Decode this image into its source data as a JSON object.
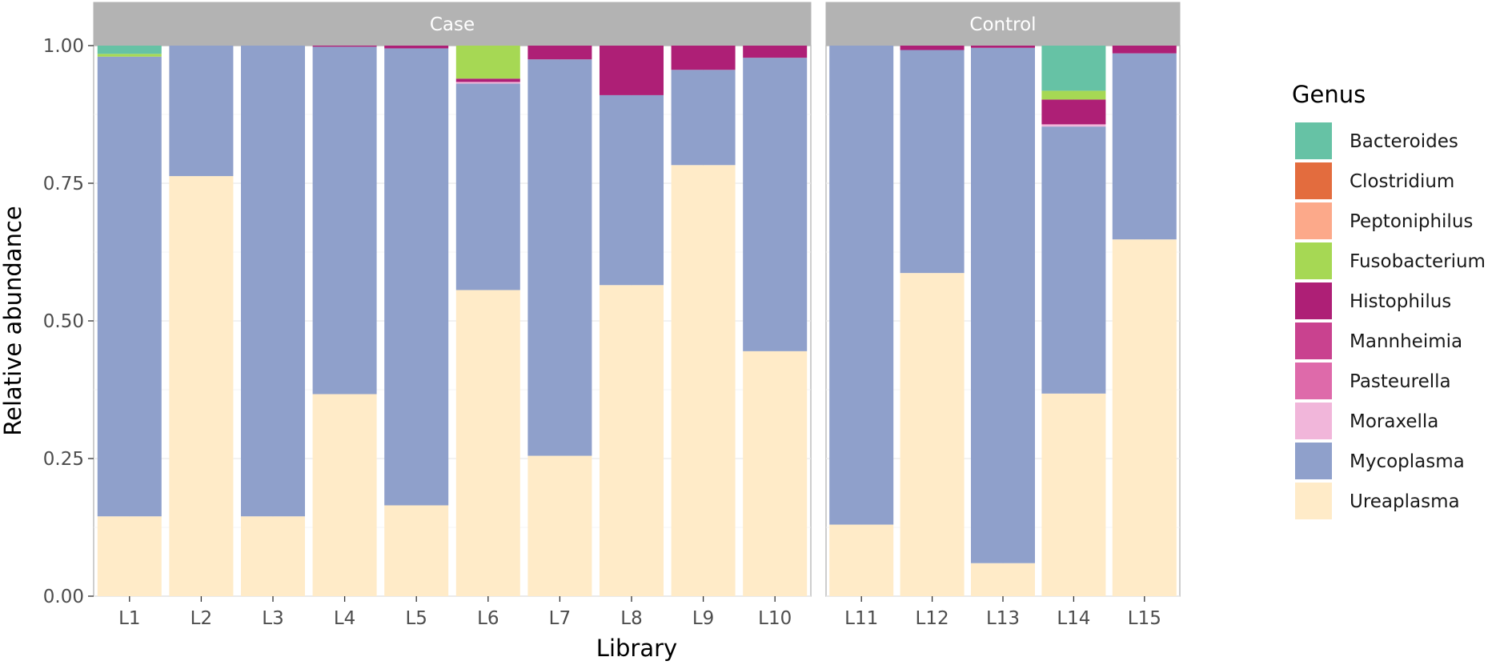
{
  "chart_data": {
    "type": "bar",
    "stacked": true,
    "xlabel": "Library",
    "ylabel": "Relative abundance",
    "ylim": [
      0,
      1
    ],
    "yticks": [
      "0.00",
      "0.25",
      "0.50",
      "0.75",
      "1.00"
    ],
    "grid": true,
    "legend": {
      "title": "Genus",
      "position": "right"
    },
    "series": [
      {
        "name": "Ureaplasma",
        "color": "#FFEBC8"
      },
      {
        "name": "Mycoplasma",
        "color": "#8FA0CB"
      },
      {
        "name": "Moraxella",
        "color": "#F1B6DA"
      },
      {
        "name": "Pasteurella",
        "color": "#DE6AAA"
      },
      {
        "name": "Mannheimia",
        "color": "#C9428F"
      },
      {
        "name": "Histophilus",
        "color": "#AE1F76"
      },
      {
        "name": "Fusobacterium",
        "color": "#A6D854"
      },
      {
        "name": "Peptoniphilus",
        "color": "#FCA98A"
      },
      {
        "name": "Clostridium",
        "color": "#E36C3E"
      },
      {
        "name": "Bacteroides",
        "color": "#66C2A5"
      }
    ],
    "legend_order": [
      "Bacteroides",
      "Clostridium",
      "Peptoniphilus",
      "Fusobacterium",
      "Histophilus",
      "Mannheimia",
      "Pasteurella",
      "Moraxella",
      "Mycoplasma",
      "Ureaplasma"
    ],
    "panels": [
      {
        "label": "Case",
        "bars": [
          {
            "x": "L1",
            "values": {
              "Ureaplasma": 0.145,
              "Mycoplasma": 0.835,
              "Fusobacterium": 0.005,
              "Bacteroides": 0.015
            }
          },
          {
            "x": "L2",
            "values": {
              "Ureaplasma": 0.763,
              "Mycoplasma": 0.237
            }
          },
          {
            "x": "L3",
            "values": {
              "Ureaplasma": 0.145,
              "Mycoplasma": 0.855
            }
          },
          {
            "x": "L4",
            "values": {
              "Ureaplasma": 0.367,
              "Mycoplasma": 0.631,
              "Histophilus": 0.002
            }
          },
          {
            "x": "L5",
            "values": {
              "Ureaplasma": 0.165,
              "Mycoplasma": 0.83,
              "Histophilus": 0.005
            }
          },
          {
            "x": "L6",
            "values": {
              "Ureaplasma": 0.556,
              "Moraxella": 0.003,
              "Mycoplasma": 0.375,
              "Histophilus": 0.006,
              "Fusobacterium": 0.06
            }
          },
          {
            "x": "L7",
            "values": {
              "Ureaplasma": 0.255,
              "Mycoplasma": 0.72,
              "Histophilus": 0.025
            }
          },
          {
            "x": "L8",
            "values": {
              "Ureaplasma": 0.565,
              "Mycoplasma": 0.345,
              "Histophilus": 0.09
            }
          },
          {
            "x": "L9",
            "values": {
              "Ureaplasma": 0.783,
              "Mycoplasma": 0.173,
              "Histophilus": 0.044
            }
          },
          {
            "x": "L10",
            "values": {
              "Ureaplasma": 0.445,
              "Mycoplasma": 0.533,
              "Histophilus": 0.022
            }
          }
        ]
      },
      {
        "label": "Control",
        "bars": [
          {
            "x": "L11",
            "values": {
              "Ureaplasma": 0.13,
              "Mycoplasma": 0.87
            }
          },
          {
            "x": "L12",
            "values": {
              "Ureaplasma": 0.587,
              "Mycoplasma": 0.405,
              "Histophilus": 0.008
            }
          },
          {
            "x": "L13",
            "values": {
              "Ureaplasma": 0.06,
              "Mycoplasma": 0.936,
              "Histophilus": 0.004
            }
          },
          {
            "x": "L14",
            "values": {
              "Ureaplasma": 0.368,
              "Moraxella": 0.004,
              "Mycoplasma": 0.485,
              "Histophilus": 0.045,
              "Fusobacterium": 0.016,
              "Bacteroides": 0.082
            }
          },
          {
            "x": "L15",
            "values": {
              "Ureaplasma": 0.648,
              "Mycoplasma": 0.338,
              "Histophilus": 0.014
            }
          }
        ]
      }
    ]
  }
}
